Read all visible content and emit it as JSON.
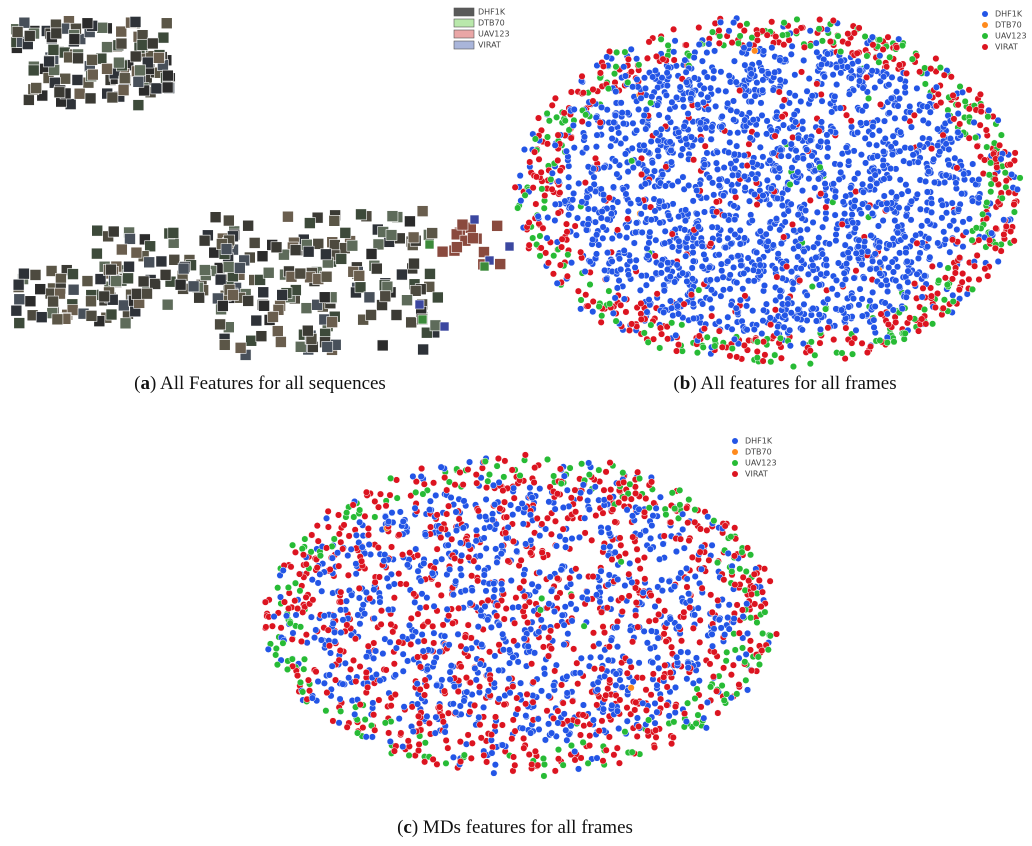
{
  "figure": {
    "panels": [
      {
        "legend": [
          {
            "name": "DHF1K",
            "color": "#5a5a5a"
          },
          {
            "name": "DTB70",
            "color": "#b9e8ab"
          },
          {
            "name": "UAV123",
            "color": "#e9a6a6"
          },
          {
            "name": "VIRAT",
            "color": "#a9b5da"
          }
        ],
        "caption": [
          {
            "text": "("
          },
          {
            "text": "a",
            "bold": true
          },
          {
            "text": ") All Features for all sequences"
          }
        ]
      },
      {
        "legend": [
          {
            "name": "DHF1K",
            "color": "#2355e6"
          },
          {
            "name": "DTB70",
            "color": "#ff8a1c"
          },
          {
            "name": "UAV123",
            "color": "#27bb35"
          },
          {
            "name": "VIRAT",
            "color": "#dc1420"
          }
        ],
        "caption": [
          {
            "text": "("
          },
          {
            "text": "b",
            "bold": true
          },
          {
            "text": ") All features for all frames"
          }
        ]
      },
      {
        "legend": [
          {
            "name": "DHF1K",
            "color": "#2355e6"
          },
          {
            "name": "DTB70",
            "color": "#ff8a1c"
          },
          {
            "name": "UAV123",
            "color": "#27bb35"
          },
          {
            "name": "VIRAT",
            "color": "#dc1420"
          }
        ],
        "caption": [
          {
            "text": "("
          },
          {
            "text": "c",
            "bold": true
          },
          {
            "text": ") MDs features for all frames"
          }
        ]
      }
    ]
  }
}
